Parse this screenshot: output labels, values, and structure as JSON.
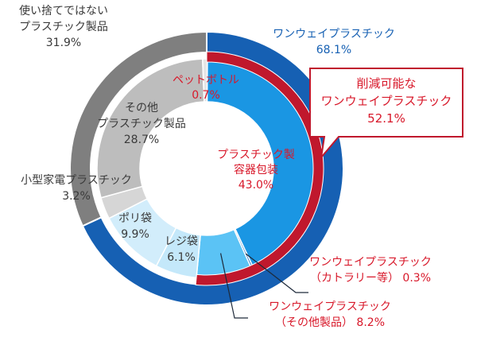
{
  "chart_data": {
    "type": "pie",
    "style": "nested-donut",
    "colors": {
      "oneway_outer": "#1660b3",
      "nononeway_outer": "#7f7f7f",
      "packaging": "#1a96e3",
      "cutlery": "#2b78c8",
      "other_oneway": "#5bc3f5",
      "reji": "#c4e8fa",
      "poly": "#d2edfb",
      "appliance": "#d6d6d6",
      "other_products": "#bdbdbd",
      "pet": "#e6e6e6",
      "highlight": "#c0182d",
      "label_red": "#d8182a",
      "label_blue": "#1660b3",
      "label_dark": "#3a3a3a"
    },
    "outer_ring": [
      {
        "name": "ワンウェイプラスチック",
        "value": 68.1,
        "value_text": "68.1%",
        "color_key": "oneway_outer"
      },
      {
        "name": "使い捨てではないプラスチック製品",
        "value": 31.9,
        "value_text": "31.9%",
        "color_key": "nononeway_outer"
      }
    ],
    "inner_ring": [
      {
        "lines": [
          "プラスチック製",
          "容器包装"
        ],
        "value": 43.0,
        "value_text": "43.0%",
        "color_key": "packaging",
        "label_color_key": "label_red"
      },
      {
        "lines": [
          "ワンウェイプラスチック",
          "（カトラリー等）"
        ],
        "value": 0.3,
        "value_text": "0.3%",
        "color_key": "cutlery",
        "label_color_key": "label_red"
      },
      {
        "lines": [
          "ワンウェイプラスチック",
          "（その他製品）"
        ],
        "value": 8.2,
        "value_text": "8.2%",
        "color_key": "other_oneway",
        "label_color_key": "label_red"
      },
      {
        "lines": [
          "レジ袋"
        ],
        "value": 6.1,
        "value_text": "6.1%",
        "color_key": "reji",
        "label_color_key": "label_dark"
      },
      {
        "lines": [
          "ポリ袋"
        ],
        "value": 9.9,
        "value_text": "9.9%",
        "color_key": "poly",
        "label_color_key": "label_dark"
      },
      {
        "lines": [
          "小型家電プラスチック"
        ],
        "value": 3.2,
        "value_text": "3.2%",
        "color_key": "appliance",
        "label_color_key": "label_dark"
      },
      {
        "lines": [
          "その他",
          "プラスチック製品"
        ],
        "value": 28.7,
        "value_text": "28.7%",
        "color_key": "other_products",
        "label_color_key": "label_dark"
      },
      {
        "lines": [
          "ペットボトル"
        ],
        "value": 0.7,
        "value_text": "0.7%",
        "color_key": "pet",
        "label_color_key": "label_red"
      }
    ],
    "callout": {
      "lines": [
        "削減可能な",
        "ワンウェイプラスチック"
      ],
      "value": 52.1,
      "value_text": "52.1%"
    }
  }
}
